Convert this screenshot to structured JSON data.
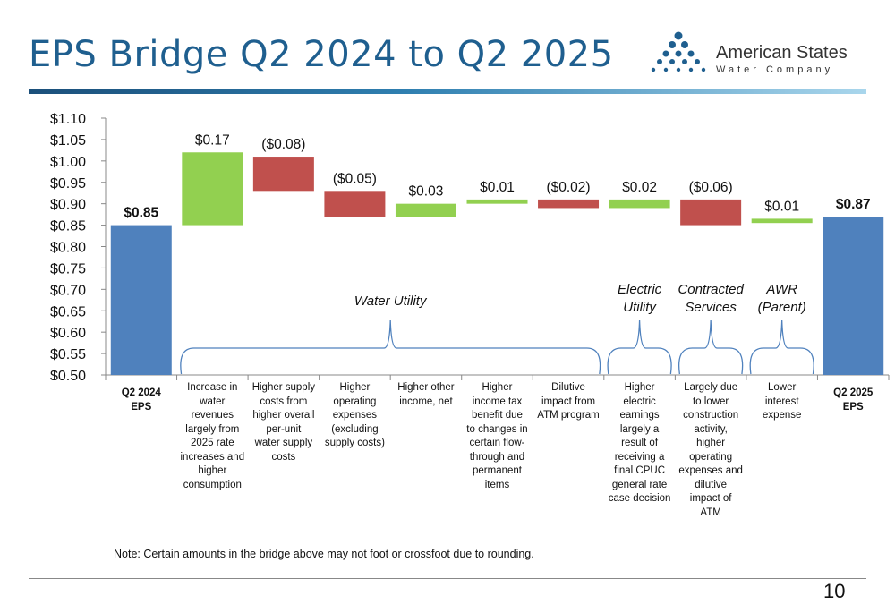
{
  "title": "EPS Bridge Q2 2024 to Q2 2025",
  "logo": {
    "name": "American States",
    "sub": "Water Company"
  },
  "note": "Note: Certain amounts in the bridge above may not foot or crossfoot due to rounding.",
  "page_number": "10",
  "colors": {
    "total": "#4f81bd",
    "increase": "#92d050",
    "decrease": "#c0504d",
    "brace": "#4f81bd",
    "title": "#1f5f8f"
  },
  "chart_data": {
    "type": "waterfall",
    "ylim": [
      0.5,
      1.1
    ],
    "yticks": [
      "$0.50",
      "$0.55",
      "$0.60",
      "$0.65",
      "$0.70",
      "$0.75",
      "$0.80",
      "$0.85",
      "$0.90",
      "$0.95",
      "$1.00",
      "$1.05",
      "$1.10"
    ],
    "grid": false,
    "steps": [
      {
        "kind": "total",
        "start": 0,
        "end": 0.85,
        "label": "$0.85"
      },
      {
        "kind": "increase",
        "start": 0.85,
        "end": 1.02,
        "label": "$0.17"
      },
      {
        "kind": "decrease",
        "start": 1.01,
        "end": 0.93,
        "label": "($0.08)"
      },
      {
        "kind": "decrease",
        "start": 0.93,
        "end": 0.87,
        "label": "($0.05)"
      },
      {
        "kind": "increase",
        "start": 0.87,
        "end": 0.9,
        "label": "$0.03"
      },
      {
        "kind": "increase",
        "start": 0.9,
        "end": 0.91,
        "label": "$0.01"
      },
      {
        "kind": "decrease",
        "start": 0.91,
        "end": 0.89,
        "label": "($0.02)"
      },
      {
        "kind": "increase",
        "start": 0.89,
        "end": 0.91,
        "label": "$0.02"
      },
      {
        "kind": "decrease",
        "start": 0.91,
        "end": 0.85,
        "label": "($0.06)"
      },
      {
        "kind": "increase",
        "start": 0.855,
        "end": 0.865,
        "label": "$0.01"
      },
      {
        "kind": "total",
        "start": 0,
        "end": 0.87,
        "label": "$0.87"
      }
    ],
    "categories": [
      [
        "Q2 2024",
        "EPS"
      ],
      [
        "Increase in",
        "water",
        "revenues",
        "largely from",
        "2025 rate",
        "increases and",
        "higher",
        "consumption"
      ],
      [
        "Higher supply",
        "costs from",
        "higher overall",
        "per-unit",
        "water supply",
        "costs"
      ],
      [
        "Higher",
        "operating",
        "expenses",
        "(excluding",
        "supply costs)"
      ],
      [
        "Higher other",
        "income, net"
      ],
      [
        "Higher",
        "income tax",
        "benefit due",
        "to changes in",
        "certain flow-",
        "through and",
        "permanent",
        "items"
      ],
      [
        "Dilutive",
        "impact from",
        "ATM program"
      ],
      [
        "Higher",
        "electric",
        "earnings",
        "largely a",
        "result of",
        "receiving a",
        "final CPUC",
        "general rate",
        "case decision"
      ],
      [
        "Largely due",
        "to lower",
        "construction",
        "activity,",
        "higher",
        "operating",
        "expenses and",
        "dilutive",
        "impact of",
        "ATM"
      ],
      [
        "Lower",
        "interest",
        "expense"
      ],
      [
        "Q2 2025",
        "EPS"
      ]
    ],
    "groups": [
      {
        "label": [
          "Water Utility"
        ],
        "from": 1,
        "to": 6
      },
      {
        "label": [
          "Electric",
          "Utility"
        ],
        "from": 7,
        "to": 7
      },
      {
        "label": [
          "Contracted",
          "Services"
        ],
        "from": 8,
        "to": 8
      },
      {
        "label": [
          "AWR",
          "(Parent)"
        ],
        "from": 9,
        "to": 9
      }
    ]
  }
}
